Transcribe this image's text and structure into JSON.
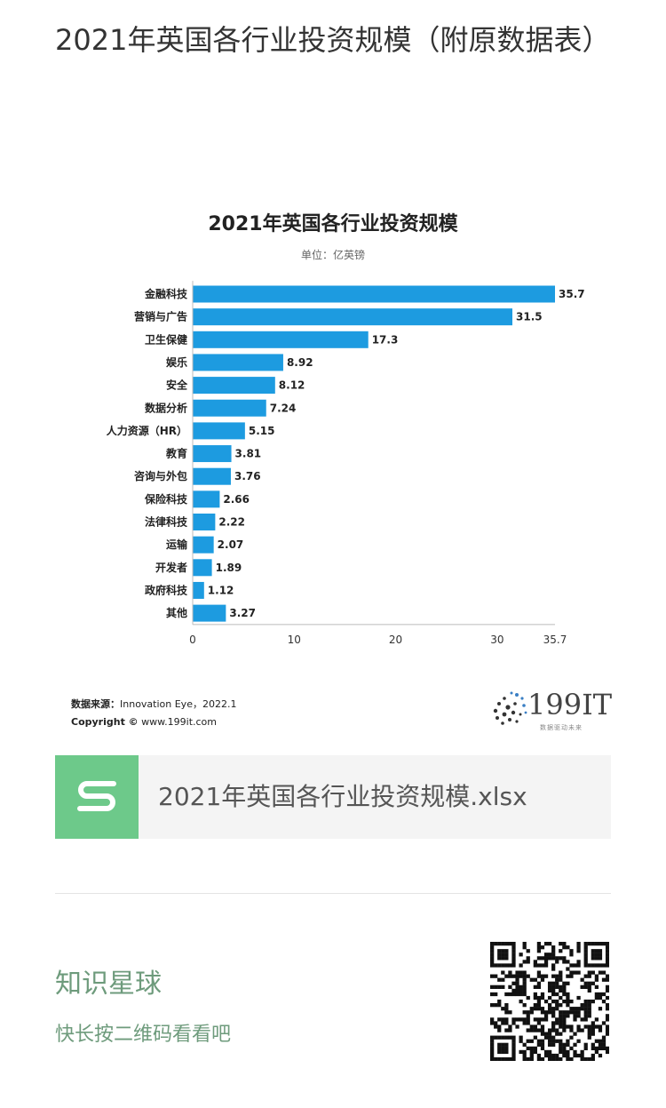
{
  "article": {
    "title": "2021年英国各行业投资规模（附原数据表）"
  },
  "chart_data": {
    "type": "bar",
    "orientation": "horizontal",
    "title": "2021年英国各行业投资规模",
    "subtitle": "单位：亿英镑",
    "categories": [
      "金融科技",
      "营销与广告",
      "卫生保健",
      "娱乐",
      "安全",
      "数据分析",
      "人力资源（HR）",
      "教育",
      "咨询与外包",
      "保险科技",
      "法律科技",
      "运输",
      "开发者",
      "政府科技",
      "其他"
    ],
    "values": [
      35.7,
      31.5,
      17.3,
      8.92,
      8.12,
      7.24,
      5.15,
      3.81,
      3.76,
      2.66,
      2.22,
      2.07,
      1.89,
      1.12,
      3.27
    ],
    "value_labels": [
      "35.7",
      "31.5",
      "17.3",
      "8.92",
      "8.12",
      "7.24",
      "5.15",
      "3.81",
      "3.76",
      "2.66",
      "2.22",
      "2.07",
      "1.89",
      "1.12",
      "3.27"
    ],
    "xticks": [
      "0",
      "10",
      "20",
      "30",
      "35.7"
    ],
    "xtick_values": [
      0,
      10,
      20,
      30,
      35.7
    ],
    "xlim": [
      0,
      35.7
    ],
    "bar_color": "#1d9be0",
    "grid": false
  },
  "source": {
    "label": "数据来源：",
    "text": "Innovation Eye，2022.1",
    "copyright_label": "Copyright ©",
    "copyright_text": "www.199it.com"
  },
  "logo": {
    "text": "199IT",
    "subtext": "数据驱动未来"
  },
  "file": {
    "icon": "spreadsheet-s-icon",
    "name": "2021年英国各行业投资规模.xlsx",
    "icon_color": "#6dc98a"
  },
  "knowledge": {
    "title": "知识星球",
    "subtitle": "快长按二维码看看吧",
    "qr_icon": "qr-code-icon"
  }
}
